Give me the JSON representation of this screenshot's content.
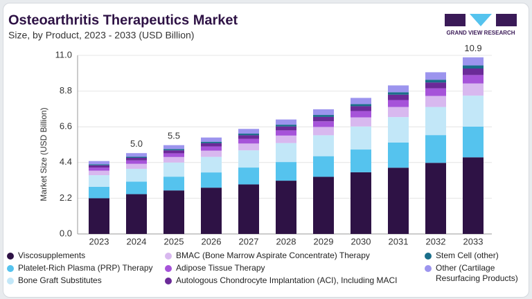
{
  "chart_data": {
    "type": "stacked-bar",
    "title": "Osteoarthritis Therapeutics Market",
    "subtitle": "Size, by Product, 2023 - 2033 (USD Billion)",
    "y_label": "Market Size (USD Billion)",
    "brand": "GRAND VIEW RESEARCH",
    "categories": [
      "2023",
      "2024",
      "2025",
      "2026",
      "2027",
      "2028",
      "2029",
      "2030",
      "2031",
      "2032",
      "2033"
    ],
    "ylim": [
      0,
      11
    ],
    "yticks": [
      {
        "value": 0,
        "label": "0.0"
      },
      2.2,
      4.4,
      6.6,
      8.8,
      {
        "value": 11,
        "label": "11.0"
      }
    ],
    "series": [
      {
        "name": "Viscosupplements",
        "color": "#2e1245",
        "values": [
          2.2,
          2.45,
          2.68,
          2.85,
          3.05,
          3.28,
          3.52,
          3.8,
          4.08,
          4.38,
          4.72
        ]
      },
      {
        "name": "Platelet-Rich Plasma (PRP) Therapy",
        "color": "#55c3ee",
        "values": [
          0.7,
          0.77,
          0.85,
          0.94,
          1.04,
          1.15,
          1.27,
          1.4,
          1.55,
          1.71,
          1.89
        ]
      },
      {
        "name": "Bone Graft Substitutes",
        "color": "#c2e7f8",
        "values": [
          0.72,
          0.79,
          0.87,
          0.96,
          1.06,
          1.17,
          1.29,
          1.42,
          1.57,
          1.73,
          1.91
        ]
      },
      {
        "name": "BMAC (Bone Marrow Aspirate Concentrate) Therapy",
        "color": "#d8b8ef",
        "values": [
          0.28,
          0.31,
          0.34,
          0.38,
          0.42,
          0.46,
          0.51,
          0.56,
          0.62,
          0.68,
          0.75
        ]
      },
      {
        "name": "Adipose Tissue Therapy",
        "color": "#a653d9",
        "values": [
          0.19,
          0.21,
          0.23,
          0.26,
          0.29,
          0.32,
          0.35,
          0.39,
          0.43,
          0.47,
          0.52
        ]
      },
      {
        "name": "Autologous Chondrocyte Implantation (ACI), Including MACI",
        "color": "#6b2a98",
        "values": [
          0.14,
          0.16,
          0.18,
          0.2,
          0.22,
          0.24,
          0.27,
          0.3,
          0.33,
          0.36,
          0.4
        ]
      },
      {
        "name": "Stem Cell (other)",
        "color": "#1a6e8a",
        "values": [
          0.06,
          0.07,
          0.08,
          0.09,
          0.1,
          0.11,
          0.12,
          0.13,
          0.15,
          0.17,
          0.19
        ]
      },
      {
        "name": "Other (Cartilage Resurfacing Products)",
        "color": "#9c94ee",
        "values": [
          0.2,
          0.22,
          0.24,
          0.26,
          0.29,
          0.32,
          0.35,
          0.38,
          0.42,
          0.46,
          0.5
        ]
      }
    ],
    "annotations": [
      {
        "category": "2024",
        "value": 5,
        "label": "5.0"
      },
      {
        "category": "2025",
        "value": 5.5,
        "label": "5.5"
      },
      {
        "category": "2033",
        "value": 10.9,
        "label": "10.9"
      }
    ]
  }
}
